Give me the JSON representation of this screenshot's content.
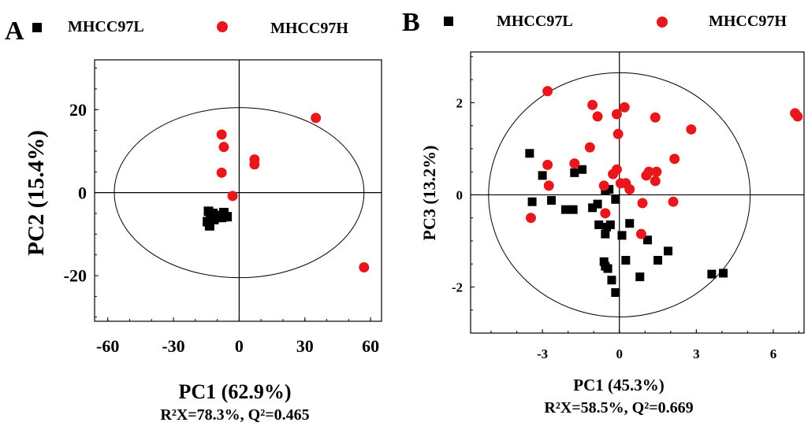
{
  "chart_data": [
    {
      "panel": "A",
      "type": "scatter",
      "xlabel": "PC1 (62.9%)",
      "ylabel": "PC2 (15.4%)",
      "stats_text": "R²X=78.3%, Q²=0.465",
      "xlim": [
        -66,
        65
      ],
      "ylim": [
        -31,
        32
      ],
      "xticks": [
        -60,
        -30,
        0,
        30,
        60
      ],
      "yticks": [
        -20,
        0,
        20
      ],
      "xtick_labels": [
        "-60",
        "-30",
        "0",
        "30",
        "60"
      ],
      "ytick_labels": [
        "-20",
        "0",
        "20"
      ],
      "ellipse": {
        "rx": 57,
        "ry": 20.5
      },
      "series": [
        {
          "name": "MHCC97L",
          "marker": "square",
          "color": "#000000",
          "points": [
            [
              -14,
              -4.5
            ],
            [
              -13,
              -6
            ],
            [
              -14.5,
              -7
            ],
            [
              -12,
              -5
            ],
            [
              -9,
              -5.5
            ],
            [
              -7,
              -4.8
            ],
            [
              -5.5,
              -5.8
            ],
            [
              -13.5,
              -8
            ],
            [
              -11.5,
              -6.5
            ],
            [
              -8,
              -6
            ]
          ]
        },
        {
          "name": "MHCC97H",
          "marker": "circle",
          "color": "#e8171b",
          "points": [
            [
              -8,
              14
            ],
            [
              -7,
              11
            ],
            [
              -8,
              4.8
            ],
            [
              -3,
              -0.8
            ],
            [
              7,
              8
            ],
            [
              7,
              6.8
            ],
            [
              35,
              18
            ],
            [
              57,
              -18
            ]
          ]
        }
      ]
    },
    {
      "panel": "B",
      "type": "scatter",
      "xlabel": "PC1 (45.3%)",
      "ylabel": "PC3 (13.2%)",
      "stats_text": "R²X=58.5%, Q²=0.669",
      "xlim": [
        -5.8,
        7.2
      ],
      "ylim": [
        -3,
        3.1
      ],
      "xticks": [
        -3,
        0,
        3,
        6
      ],
      "yticks": [
        -2,
        0,
        2
      ],
      "xtick_labels": [
        "-3",
        "0",
        "3",
        "6"
      ],
      "ytick_labels": [
        "-2",
        "0",
        "2"
      ],
      "ellipse": {
        "rx": 5.1,
        "ry": 2.65
      },
      "series": [
        {
          "name": "MHCC97L",
          "marker": "square",
          "color": "#000000",
          "points": [
            [
              -3.5,
              0.9
            ],
            [
              -3,
              0.42
            ],
            [
              -3.4,
              -0.15
            ],
            [
              -2.65,
              -0.12
            ],
            [
              -2.1,
              -0.32
            ],
            [
              -1.8,
              -0.32
            ],
            [
              -1.75,
              0.48
            ],
            [
              -1.45,
              0.55
            ],
            [
              -1.05,
              -0.28
            ],
            [
              -0.85,
              -0.2
            ],
            [
              -0.55,
              0.1
            ],
            [
              -0.4,
              0.12
            ],
            [
              -0.8,
              -0.65
            ],
            [
              -0.5,
              -0.7
            ],
            [
              -0.35,
              -0.65
            ],
            [
              -0.55,
              -0.85
            ],
            [
              -0.15,
              -0.1
            ],
            [
              0.1,
              -0.88
            ],
            [
              0.4,
              -0.62
            ],
            [
              -0.6,
              -1.45
            ],
            [
              -0.55,
              -1.55
            ],
            [
              -0.45,
              -1.6
            ],
            [
              -0.3,
              -1.85
            ],
            [
              -0.15,
              -2.12
            ],
            [
              0.25,
              -1.42
            ],
            [
              0.8,
              -1.78
            ],
            [
              1.1,
              -0.98
            ],
            [
              1.5,
              -1.42
            ],
            [
              1.9,
              -1.22
            ],
            [
              3.6,
              -1.72
            ],
            [
              4.05,
              -1.7
            ]
          ]
        },
        {
          "name": "MHCC97H",
          "marker": "circle",
          "color": "#e8171b",
          "points": [
            [
              -2.8,
              2.25
            ],
            [
              -2.8,
              0.65
            ],
            [
              -2.75,
              0.2
            ],
            [
              -3.45,
              -0.5
            ],
            [
              -1.05,
              1.95
            ],
            [
              -0.85,
              1.7
            ],
            [
              -1.15,
              1.03
            ],
            [
              -0.1,
              1.75
            ],
            [
              0.2,
              1.9
            ],
            [
              -0.05,
              1.32
            ],
            [
              1.4,
              1.68
            ],
            [
              2.8,
              1.42
            ],
            [
              2.15,
              0.78
            ],
            [
              -0.1,
              0.55
            ],
            [
              -0.25,
              0.45
            ],
            [
              -0.6,
              0.2
            ],
            [
              0.05,
              0.25
            ],
            [
              0.25,
              0.25
            ],
            [
              0.4,
              0.12
            ],
            [
              1.05,
              0.42
            ],
            [
              1.15,
              0.5
            ],
            [
              1.45,
              0.5
            ],
            [
              1.4,
              0.3
            ],
            [
              2.1,
              -0.15
            ],
            [
              0.9,
              -0.18
            ],
            [
              -0.55,
              -0.4
            ],
            [
              -1.75,
              0.68
            ],
            [
              0.85,
              -0.85
            ],
            [
              6.85,
              1.77
            ],
            [
              6.95,
              1.7
            ]
          ]
        }
      ]
    }
  ]
}
